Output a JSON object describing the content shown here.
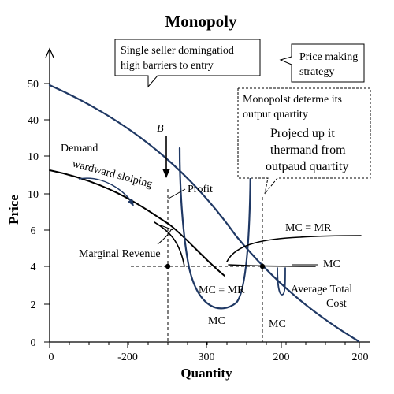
{
  "chart_data": {
    "type": "line",
    "title": "Monopoly",
    "xlabel": "Quantity",
    "ylabel": "Price",
    "x_tick_labels": [
      "0",
      "-200",
      "300",
      "200",
      "200"
    ],
    "y_tick_labels": [
      "0",
      "2",
      "4",
      "6",
      "10",
      "10",
      "40",
      "50"
    ],
    "series": [
      {
        "name": "Demand",
        "values": [
          10.4,
          9.7,
          8.6,
          7.3,
          5.9,
          4.6,
          3.1,
          1.7,
          0.1
        ]
      },
      {
        "name": "Marginal Revenue",
        "values": [
          49,
          44,
          36,
          25,
          14,
          4,
          -6
        ]
      },
      {
        "name": "MC = MR",
        "values": [
          3.8,
          4.6,
          5.0,
          5.2,
          5.3,
          5.4
        ]
      },
      {
        "name": "MC",
        "values": [
          4.0,
          4.0,
          4.0,
          4.0
        ]
      }
    ],
    "annotations": {
      "b_marker": "B",
      "demand": "Demand",
      "sloping": "wardward sloiping",
      "profit": "Profit",
      "marginal_revenue": "Marginal Revenue",
      "mc_mr_upper": "MC = MR",
      "mc_right": "MC",
      "mc_mr_lower": "MC = MR",
      "mc_bottom": "MC",
      "mc_axis": "MC",
      "atc_line1": "Average Total",
      "atc_line2": "Cost"
    },
    "callouts": [
      {
        "lines": [
          "Single seller domingatiod",
          "high barriers to entry"
        ]
      },
      {
        "lines": [
          "Price making",
          "strategy"
        ]
      },
      {
        "lines": [
          "Monopolst determe its",
          "output quartity"
        ],
        "big_lines": [
          "Projecd up it",
          "thermand from",
          "outpaud quartity"
        ]
      }
    ],
    "grid": false
  }
}
